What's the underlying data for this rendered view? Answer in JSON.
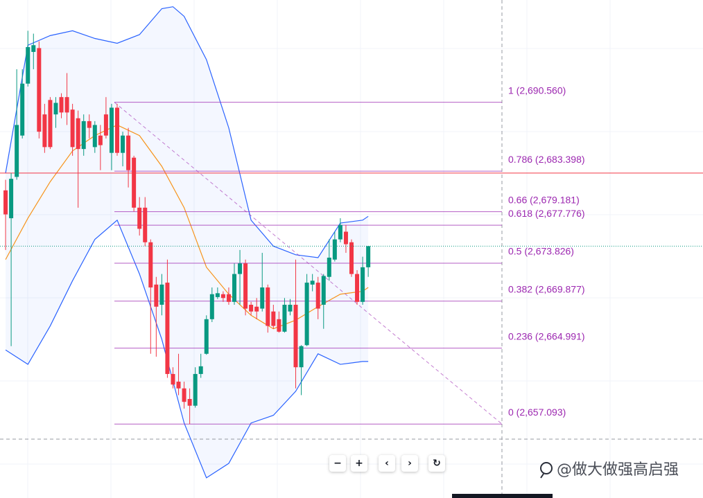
{
  "chart_data": {
    "type": "candlestick",
    "ylim": [
      2649.4,
      2701.2
    ],
    "xlim": [
      -1,
      125
    ],
    "up_color": "#089981",
    "down_color": "#f23645",
    "ohlc": [
      [
        2681.4,
        2682.5,
        2675.2,
        2678.9
      ],
      [
        2678.5,
        2683.2,
        2665.2,
        2682.6
      ],
      [
        2682.8,
        2694.0,
        2682.5,
        2688.2
      ],
      [
        2687.1,
        2694.0,
        2686.8,
        2692.5
      ],
      [
        2692.5,
        2698.0,
        2692.2,
        2696.3
      ],
      [
        2695.8,
        2697.7,
        2694.0,
        2696.5
      ],
      [
        2696.2,
        2696.9,
        2686.8,
        2687.5
      ],
      [
        2689.3,
        2690.4,
        2685.3,
        2685.9
      ],
      [
        2690.8,
        2691.1,
        2685.7,
        2685.9
      ],
      [
        2689.3,
        2691.1,
        2687.9,
        2690.5
      ],
      [
        2691.1,
        2691.5,
        2688.9,
        2689.5
      ],
      [
        2691.1,
        2693.6,
        2688.2,
        2689.5
      ],
      [
        2689.8,
        2690.4,
        2685.0,
        2685.9
      ],
      [
        2688.9,
        2689.7,
        2679.6,
        2685.7
      ],
      [
        2685.7,
        2689.3,
        2685.0,
        2688.6
      ],
      [
        2688.6,
        2689.3,
        2686.8,
        2687.9
      ],
      [
        2685.9,
        2688.6,
        2685.3,
        2688.2
      ],
      [
        2687.1,
        2688.2,
        2683.5,
        2686.1
      ],
      [
        2689.3,
        2691.1,
        2686.8,
        2687.1
      ],
      [
        2685.3,
        2690.4,
        2683.5,
        2690.0
      ],
      [
        2690.0,
        2690.4,
        2685.0,
        2685.3
      ],
      [
        2685.3,
        2687.5,
        2683.9,
        2687.1
      ],
      [
        2687.1,
        2687.9,
        2681.7,
        2683.5
      ],
      [
        2684.8,
        2685.0,
        2679.2,
        2679.6
      ],
      [
        2679.6,
        2680.7,
        2676.7,
        2677.4
      ],
      [
        2679.6,
        2680.7,
        2675.6,
        2676.0
      ],
      [
        2676.0,
        2676.3,
        2664.4,
        2671.3
      ],
      [
        2671.6,
        2672.4,
        2664.1,
        2669.3
      ],
      [
        2669.5,
        2672.7,
        2668.4,
        2671.6
      ],
      [
        2671.8,
        2674.2,
        2661.9,
        2662.3
      ],
      [
        2662.3,
        2663.0,
        2660.8,
        2661.2
      ],
      [
        2661.5,
        2664.4,
        2660.1,
        2660.8
      ],
      [
        2660.8,
        2661.5,
        2658.7,
        2659.4
      ],
      [
        2659.7,
        2660.8,
        2657.1,
        2659.0
      ],
      [
        2659.0,
        2663.0,
        2658.8,
        2662.3
      ],
      [
        2662.3,
        2664.4,
        2661.9,
        2663.1
      ],
      [
        2664.4,
        2668.4,
        2664.3,
        2668.0
      ],
      [
        2668.0,
        2671.3,
        2667.7,
        2670.6
      ],
      [
        2670.3,
        2671.3,
        2670.1,
        2670.7
      ],
      [
        2670.6,
        2670.9,
        2669.8,
        2670.2
      ],
      [
        2670.6,
        2671.3,
        2669.5,
        2669.8
      ],
      [
        2669.8,
        2673.8,
        2669.5,
        2672.7
      ],
      [
        2672.7,
        2675.2,
        2669.5,
        2673.8
      ],
      [
        2673.8,
        2674.2,
        2668.4,
        2669.1
      ],
      [
        2669.5,
        2669.8,
        2668.4,
        2668.8
      ],
      [
        2669.3,
        2670.2,
        2668.0,
        2668.8
      ],
      [
        2669.1,
        2674.9,
        2668.8,
        2671.3
      ],
      [
        2671.3,
        2671.6,
        2666.6,
        2667.3
      ],
      [
        2668.8,
        2669.5,
        2667.0,
        2667.3
      ],
      [
        2668.0,
        2668.8,
        2666.6,
        2666.7
      ],
      [
        2666.7,
        2670.2,
        2666.6,
        2669.5
      ],
      [
        2668.8,
        2670.1,
        2668.4,
        2669.5
      ],
      [
        2669.5,
        2674.2,
        2660.8,
        2663.0
      ],
      [
        2663.0,
        2665.3,
        2660.1,
        2665.2
      ],
      [
        2665.3,
        2672.7,
        2665.2,
        2671.8
      ],
      [
        2671.6,
        2672.7,
        2670.9,
        2672.0
      ],
      [
        2671.8,
        2672.4,
        2668.0,
        2669.1
      ],
      [
        2669.5,
        2672.7,
        2667.0,
        2672.5
      ],
      [
        2672.4,
        2676.3,
        2672.0,
        2674.4
      ],
      [
        2674.2,
        2677.1,
        2674.0,
        2676.3
      ],
      [
        2676.3,
        2678.5,
        2676.0,
        2677.8
      ],
      [
        2677.1,
        2677.8,
        2674.9,
        2675.8
      ],
      [
        2676.0,
        2676.3,
        2672.4,
        2672.7
      ],
      [
        2672.7,
        2673.1,
        2669.5,
        2669.8
      ],
      [
        2669.8,
        2674.5,
        2669.5,
        2673.4
      ],
      [
        2673.4,
        2675.6,
        2672.4,
        2675.6
      ]
    ],
    "upper_band": {
      "color": "#2962ff",
      "x": [
        0,
        4,
        8,
        12,
        16,
        20,
        24,
        28,
        30,
        32,
        36,
        40,
        44,
        48,
        52,
        56,
        60,
        64,
        65
      ],
      "values": [
        2683.2,
        2696.5,
        2697.5,
        2698.0,
        2697.2,
        2696.7,
        2697.6,
        2700.3,
        2700.5,
        2699.5,
        2695.0,
        2687.9,
        2678.3,
        2675.6,
        2674.7,
        2674.4,
        2678.0,
        2678.3,
        2678.7
      ]
    },
    "lower_band": {
      "color": "#2962ff",
      "x": [
        0,
        4,
        8,
        12,
        16,
        20,
        24,
        28,
        32,
        36,
        40,
        44,
        48,
        52,
        56,
        60,
        64,
        65
      ],
      "values": [
        2664.8,
        2663.3,
        2667.3,
        2672.0,
        2676.3,
        2678.3,
        2672.7,
        2665.9,
        2657.2,
        2651.5,
        2653.0,
        2657.2,
        2658.0,
        2660.5,
        2664.4,
        2663.3,
        2663.6,
        2663.6
      ]
    },
    "moving_average": {
      "color": "#f7931a",
      "x": [
        0,
        4,
        8,
        12,
        16,
        20,
        24,
        28,
        32,
        36,
        40,
        44,
        48,
        52,
        56,
        60,
        64,
        65
      ],
      "values": [
        2674.2,
        2678.5,
        2682.3,
        2685.5,
        2687.1,
        2688.2,
        2687.1,
        2683.9,
        2679.6,
        2673.4,
        2670.6,
        2668.4,
        2667.0,
        2667.9,
        2669.3,
        2670.6,
        2670.9,
        2671.3
      ]
    },
    "fib_color": "#9c27b0",
    "fib_levels": [
      {
        "label": "1 (2,690.560)",
        "value": 2690.56
      },
      {
        "label": "0.786 (2,683.398)",
        "value": 2683.398
      },
      {
        "label": "0.66 (2,679.181)",
        "value": 2679.181
      },
      {
        "label": "0.618 (2,677.776)",
        "value": 2677.776
      },
      {
        "label": "0.5 (2,673.826)",
        "value": 2673.826
      },
      {
        "label": "0.382 (2,669.877)",
        "value": 2669.877
      },
      {
        "label": "0.236 (2,664.991)",
        "value": 2664.991
      },
      {
        "label": "0 (2,657.093)",
        "value": 2657.093
      }
    ],
    "alert_line": {
      "value": 2683.2,
      "color": "#f23645"
    }
  },
  "controls": [
    "−",
    "+",
    "‹",
    "›",
    "↻"
  ],
  "watermark": "@做大做强高启强"
}
